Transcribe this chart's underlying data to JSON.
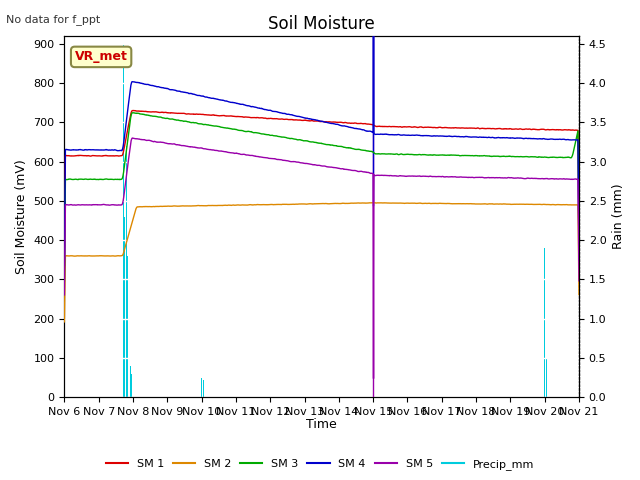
{
  "title": "Soil Moisture",
  "ylabel_left": "Soil Moisture (mV)",
  "ylabel_right": "Rain (mm)",
  "xlabel": "Time",
  "top_left_text": "No data for f_ppt",
  "legend_label": "VR_met",
  "ylim_left": [
    0,
    920
  ],
  "ylim_right": [
    0,
    4.6
  ],
  "yticks_left": [
    0,
    100,
    200,
    300,
    400,
    500,
    600,
    700,
    800,
    900
  ],
  "yticks_right": [
    0.0,
    0.5,
    1.0,
    1.5,
    2.0,
    2.5,
    3.0,
    3.5,
    4.0,
    4.5
  ],
  "xtick_labels": [
    "Nov 6",
    "Nov 7",
    "Nov 8",
    "Nov 9",
    "Nov 10",
    "Nov 11",
    "Nov 12",
    "Nov 13",
    "Nov 14",
    "Nov 15",
    "Nov 16",
    "Nov 17",
    "Nov 18",
    "Nov 19",
    "Nov 20",
    "Nov 21"
  ],
  "colors": {
    "SM1": "#dd0000",
    "SM2": "#dd8800",
    "SM3": "#00aa00",
    "SM4": "#0000cc",
    "SM5": "#9900aa",
    "Precip": "#00ccdd",
    "background": "#e8e8e8"
  },
  "num_points": 3600
}
